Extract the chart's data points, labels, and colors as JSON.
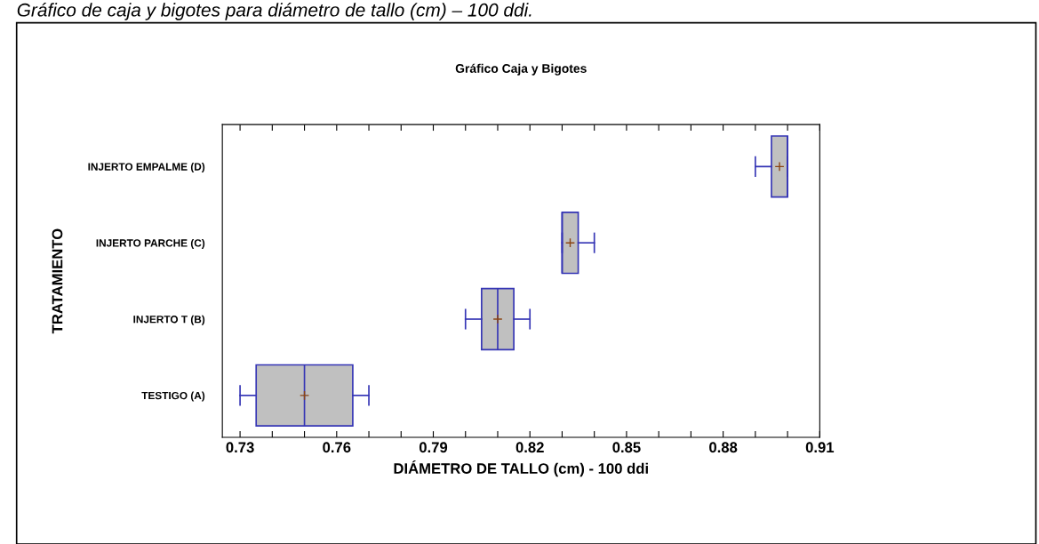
{
  "chart_data": {
    "type": "box",
    "orientation": "horizontal",
    "title": "Gráfico Caja y Bigotes",
    "xlabel": "DIÁMETRO DE TALLO (cm) - 100 ddi",
    "ylabel": "TRATAMIENTO",
    "annotations": [
      "Gráfico de caja y bigotes para diámetro de tallo (cm) – 100 ddi."
    ],
    "categories": [
      "INJERTO EMPALME (D)",
      "INJERTO PARCHE (C)",
      "INJERTO T (B)",
      "TESTIGO (A)"
    ],
    "series": [
      {
        "color": "#c0c0c0",
        "boxes": [
          {
            "low": 0.89,
            "q1": 0.895,
            "median": 0.9,
            "q3": 0.9,
            "high": 0.9,
            "mean": 0.8975
          },
          {
            "low": 0.83,
            "q1": 0.83,
            "median": 0.83,
            "q3": 0.835,
            "high": 0.84,
            "mean": 0.8325
          },
          {
            "low": 0.8,
            "q1": 0.805,
            "median": 0.81,
            "q3": 0.815,
            "high": 0.82,
            "mean": 0.81
          },
          {
            "low": 0.73,
            "q1": 0.735,
            "median": 0.75,
            "q3": 0.765,
            "high": 0.77,
            "mean": 0.75
          }
        ]
      }
    ],
    "xlim": [
      0.7245,
      0.91
    ],
    "xticks": [
      0.73,
      {
        "value": 0.74,
        "label": null
      },
      {
        "value": 0.75,
        "label": null
      },
      0.76,
      {
        "value": 0.77,
        "label": null
      },
      {
        "value": 0.78,
        "label": null
      },
      0.79,
      {
        "value": 0.8,
        "label": null
      },
      {
        "value": 0.81,
        "label": null
      },
      0.82,
      {
        "value": 0.83,
        "label": null
      },
      {
        "value": 0.84,
        "label": null
      },
      0.85,
      {
        "value": 0.86,
        "label": null
      },
      {
        "value": 0.87,
        "label": null
      },
      0.88,
      {
        "value": 0.89,
        "label": null
      },
      {
        "value": 0.9,
        "label": null
      },
      0.91
    ],
    "grid": false
  }
}
